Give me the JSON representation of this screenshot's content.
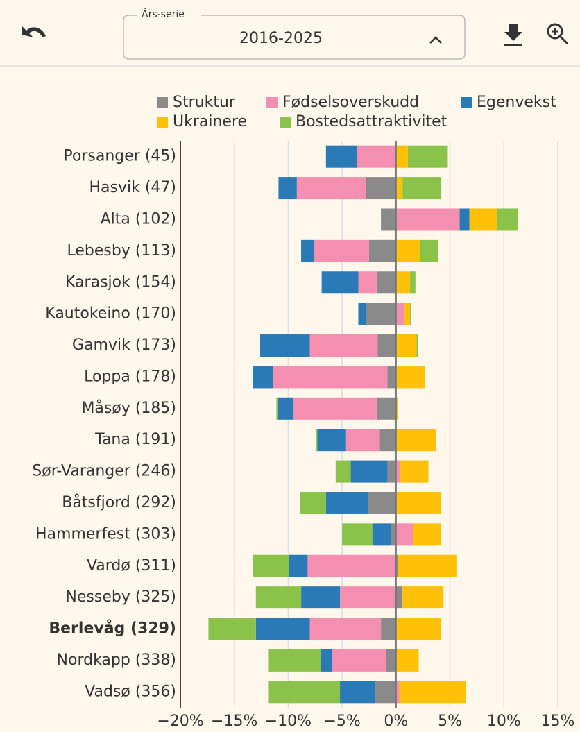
{
  "toolbar": {
    "select_label": "Års-serie",
    "select_value": "2016-2025"
  },
  "chart_data": {
    "type": "bar",
    "orientation": "horizontal",
    "stacked": true,
    "categories": [
      "Porsanger (45)",
      "Hasvik (47)",
      "Alta (102)",
      "Lebesby (113)",
      "Karasjok (154)",
      "Kautokeino (170)",
      "Gamvik (173)",
      "Loppa (178)",
      "Måsøy (185)",
      "Tana (191)",
      "Sør-Varanger (246)",
      "Båtsfjord (292)",
      "Hammerfest (303)",
      "Vardø (311)",
      "Nesseby (325)",
      "Berlevåg (329)",
      "Nordkapp (338)",
      "Vadsø (356)"
    ],
    "highlight_index": 15,
    "series": [
      {
        "name": "Struktur",
        "color": "#8a8a8a",
        "values": [
          -0.1,
          -2.8,
          -1.4,
          -2.5,
          -1.8,
          -2.8,
          -1.7,
          -0.8,
          -1.8,
          -1.5,
          -0.8,
          -2.6,
          -0.5,
          0.2,
          0.6,
          -1.4,
          -0.9,
          -1.9
        ]
      },
      {
        "name": "Fødselsoverskudd",
        "color": "#f48fb1",
        "values": [
          -3.5,
          -6.4,
          5.9,
          -5.1,
          -1.7,
          0.8,
          -6.3,
          -10.6,
          -7.7,
          -3.2,
          0.4,
          0,
          1.6,
          -8.2,
          -5.2,
          -6.6,
          -5.0,
          0.3
        ]
      },
      {
        "name": "Egenvekst",
        "color": "#2a7ab8",
        "values": [
          -2.9,
          -1.7,
          0.9,
          -1.2,
          -3.4,
          -0.7,
          -4.6,
          -1.9,
          -1.5,
          -2.6,
          -3.4,
          -3.9,
          -1.7,
          -1.7,
          -3.6,
          -5.0,
          -1.1,
          -3.3
        ]
      },
      {
        "name": "Ukrainere",
        "color": "#ffc107",
        "values": [
          1.1,
          0.6,
          2.6,
          2.2,
          1.3,
          0.5,
          1.9,
          2.7,
          0.2,
          3.7,
          2.6,
          4.2,
          2.6,
          5.4,
          3.8,
          4.2,
          2.1,
          6.2
        ]
      },
      {
        "name": "Bostedsattraktivitet",
        "color": "#8bc34a",
        "values": [
          3.7,
          3.6,
          1.9,
          1.7,
          0.5,
          0.1,
          0.1,
          0,
          -0.1,
          -0.1,
          -1.4,
          -2.4,
          -2.8,
          -3.4,
          -4.2,
          -4.4,
          -4.8,
          -6.6
        ]
      }
    ],
    "xlim": [
      -20,
      15
    ],
    "xticks": [
      {
        "value": -20,
        "label": "−20%"
      },
      {
        "value": -15,
        "label": "−15%"
      },
      {
        "value": -10,
        "label": "−10%"
      },
      {
        "value": -5,
        "label": "−5%"
      },
      {
        "value": 0,
        "label": "0%"
      },
      {
        "value": 5,
        "label": "5%"
      },
      {
        "value": 10,
        "label": "10%"
      },
      {
        "value": 15,
        "label": "15%"
      }
    ],
    "grid": true,
    "legend": "top"
  }
}
